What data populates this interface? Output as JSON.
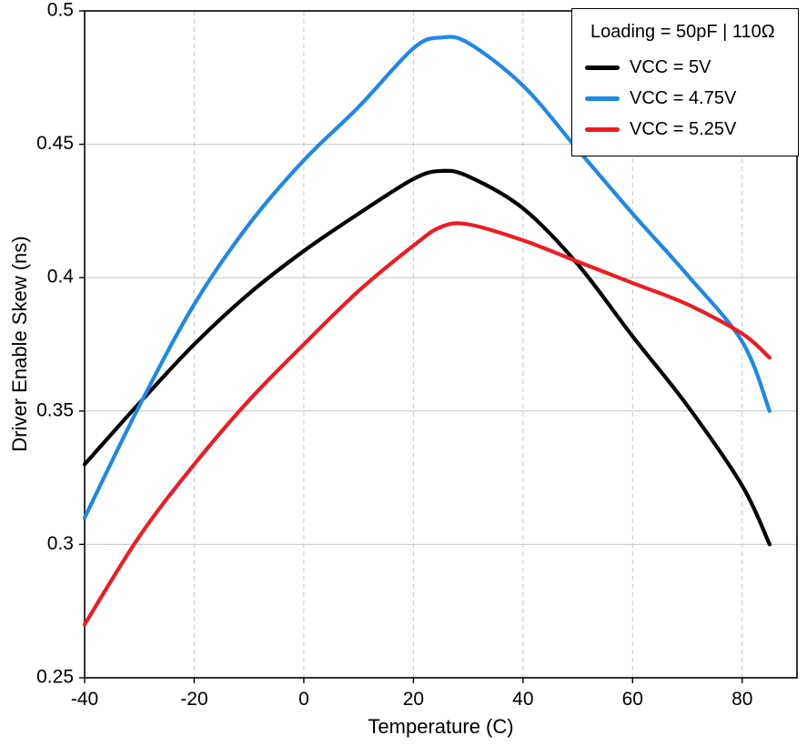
{
  "chart_data": {
    "type": "line",
    "title": "",
    "xlabel": "Temperature (C)",
    "ylabel": "Driver Enable Skew (ns)",
    "legend_title": "Loading =  50pF | 110Ω",
    "legend_position": "top-right",
    "grid": true,
    "xlim": [
      -40,
      90
    ],
    "ylim": [
      0.25,
      0.5
    ],
    "xticks": [
      -40,
      -20,
      0,
      20,
      40,
      60,
      80
    ],
    "yticks": [
      0.25,
      0.3,
      0.35,
      0.4,
      0.45,
      0.5
    ],
    "x": [
      -40,
      -30,
      -20,
      -10,
      0,
      10,
      20,
      25,
      30,
      40,
      50,
      60,
      70,
      80,
      85
    ],
    "series": [
      {
        "name": "VCC = 5V",
        "color": "#000000",
        "values": [
          0.33,
          0.353,
          0.375,
          0.394,
          0.41,
          0.424,
          0.437,
          0.44,
          0.438,
          0.426,
          0.405,
          0.378,
          0.352,
          0.322,
          0.3
        ]
      },
      {
        "name": "VCC = 4.75V",
        "color": "#1E88E5",
        "values": [
          0.31,
          0.352,
          0.39,
          0.42,
          0.444,
          0.464,
          0.486,
          0.49,
          0.488,
          0.472,
          0.448,
          0.424,
          0.401,
          0.376,
          0.35
        ]
      },
      {
        "name": "VCC = 5.25V",
        "color": "#ED1C24",
        "values": [
          0.27,
          0.303,
          0.33,
          0.354,
          0.375,
          0.395,
          0.412,
          0.419,
          0.42,
          0.414,
          0.406,
          0.398,
          0.39,
          0.379,
          0.37
        ]
      }
    ]
  }
}
